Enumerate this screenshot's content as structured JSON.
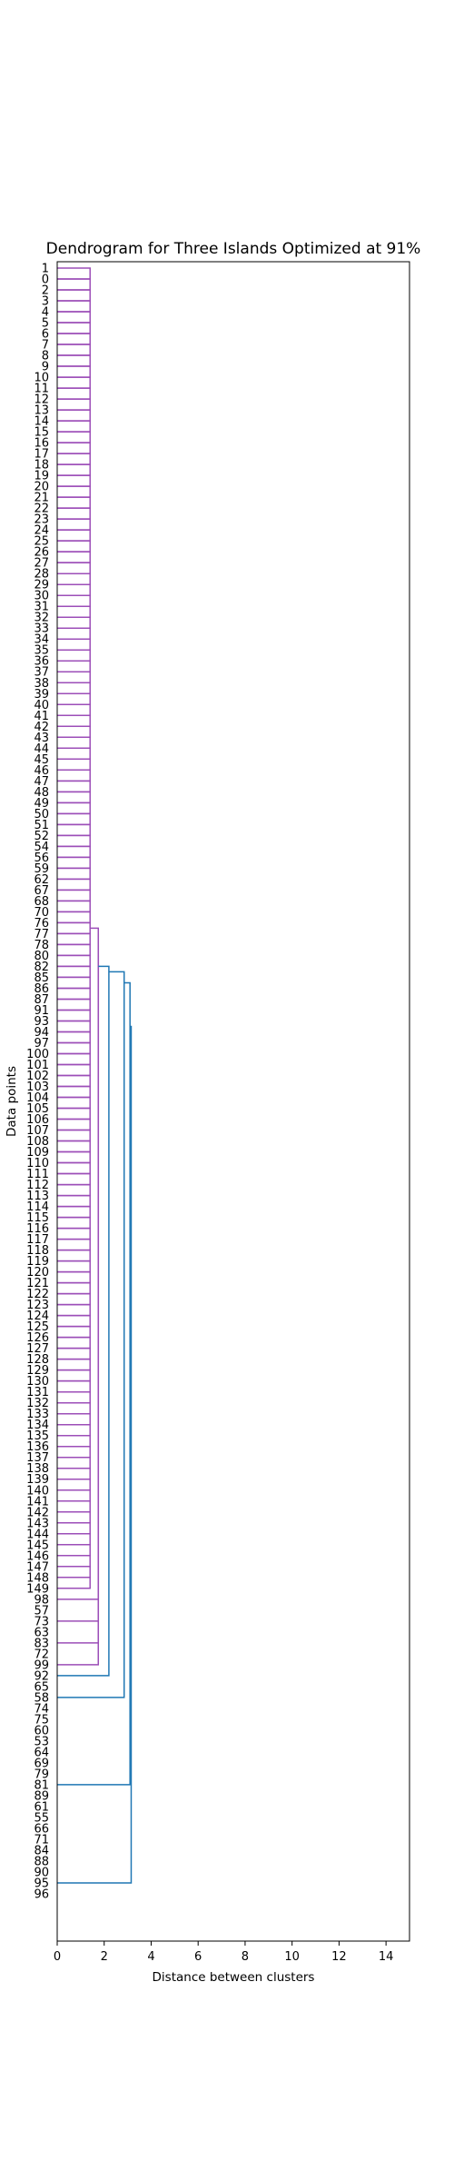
{
  "chart_data": {
    "type": "dendrogram",
    "title": "Dendrogram for Three Islands Optimized at 91%",
    "xlabel": "Distance between clusters",
    "ylabel": "Data points",
    "orientation": "left",
    "xlim": [
      0,
      15
    ],
    "xticks": [
      0,
      2,
      4,
      6,
      8,
      10,
      12,
      14
    ],
    "grid": false,
    "colors": {
      "cluster": "#9c4eb8",
      "above_threshold": "#1f77b4"
    },
    "leaves": [
      "1",
      "0",
      "2",
      "3",
      "4",
      "5",
      "6",
      "7",
      "8",
      "9",
      "10",
      "11",
      "12",
      "13",
      "14",
      "15",
      "16",
      "17",
      "18",
      "19",
      "20",
      "21",
      "22",
      "23",
      "24",
      "25",
      "26",
      "27",
      "28",
      "29",
      "30",
      "31",
      "32",
      "33",
      "34",
      "35",
      "36",
      "37",
      "38",
      "39",
      "40",
      "41",
      "42",
      "43",
      "44",
      "45",
      "46",
      "47",
      "48",
      "49",
      "50",
      "51",
      "52",
      "54",
      "56",
      "59",
      "62",
      "67",
      "68",
      "70",
      "76",
      "77",
      "78",
      "80",
      "82",
      "85",
      "86",
      "87",
      "91",
      "93",
      "94",
      "97",
      "100",
      "101",
      "102",
      "103",
      "104",
      "105",
      "106",
      "107",
      "108",
      "109",
      "110",
      "111",
      "112",
      "113",
      "114",
      "115",
      "116",
      "117",
      "118",
      "119",
      "120",
      "121",
      "122",
      "123",
      "124",
      "125",
      "126",
      "127",
      "128",
      "129",
      "130",
      "131",
      "132",
      "133",
      "134",
      "135",
      "136",
      "137",
      "138",
      "139",
      "140",
      "141",
      "142",
      "143",
      "144",
      "145",
      "146",
      "147",
      "148",
      "149",
      "98",
      "57",
      "73",
      "63",
      "83",
      "72",
      "99",
      "92",
      "65",
      "58",
      "74",
      "75",
      "60",
      "53",
      "64",
      "69",
      "79",
      "81",
      "89",
      "61",
      "55",
      "66",
      "71",
      "84",
      "88",
      "90",
      "95",
      "96"
    ],
    "merges": [
      {
        "leaves": [
          0,
          121
        ],
        "distance": 1.4,
        "color": "cluster"
      },
      {
        "between": [
          0,
          121
        ],
        "plus_leaf": 122,
        "distance": 1.75,
        "color": "cluster"
      },
      {
        "between": [
          0,
          122
        ],
        "plus_leaf": 124,
        "distance": 1.75,
        "color": "cluster"
      },
      {
        "between": [
          0,
          124
        ],
        "plus_leaf": 126,
        "distance": 1.75,
        "color": "cluster"
      },
      {
        "between": [
          0,
          126
        ],
        "plus_leaf": 128,
        "distance": 1.75,
        "color": "cluster"
      },
      {
        "between": [
          0,
          128
        ],
        "plus_leaf": 129,
        "distance": 2.2,
        "color": "above_threshold"
      },
      {
        "between": [
          0,
          129
        ],
        "plus_leaf": 131,
        "distance": 2.85,
        "color": "above_threshold"
      },
      {
        "between": [
          0,
          131
        ],
        "plus_leaf": 139,
        "distance": 3.1,
        "color": "above_threshold"
      },
      {
        "between": [
          0,
          139
        ],
        "plus_leaf": 148,
        "distance": 3.15,
        "color": "above_threshold"
      }
    ]
  }
}
